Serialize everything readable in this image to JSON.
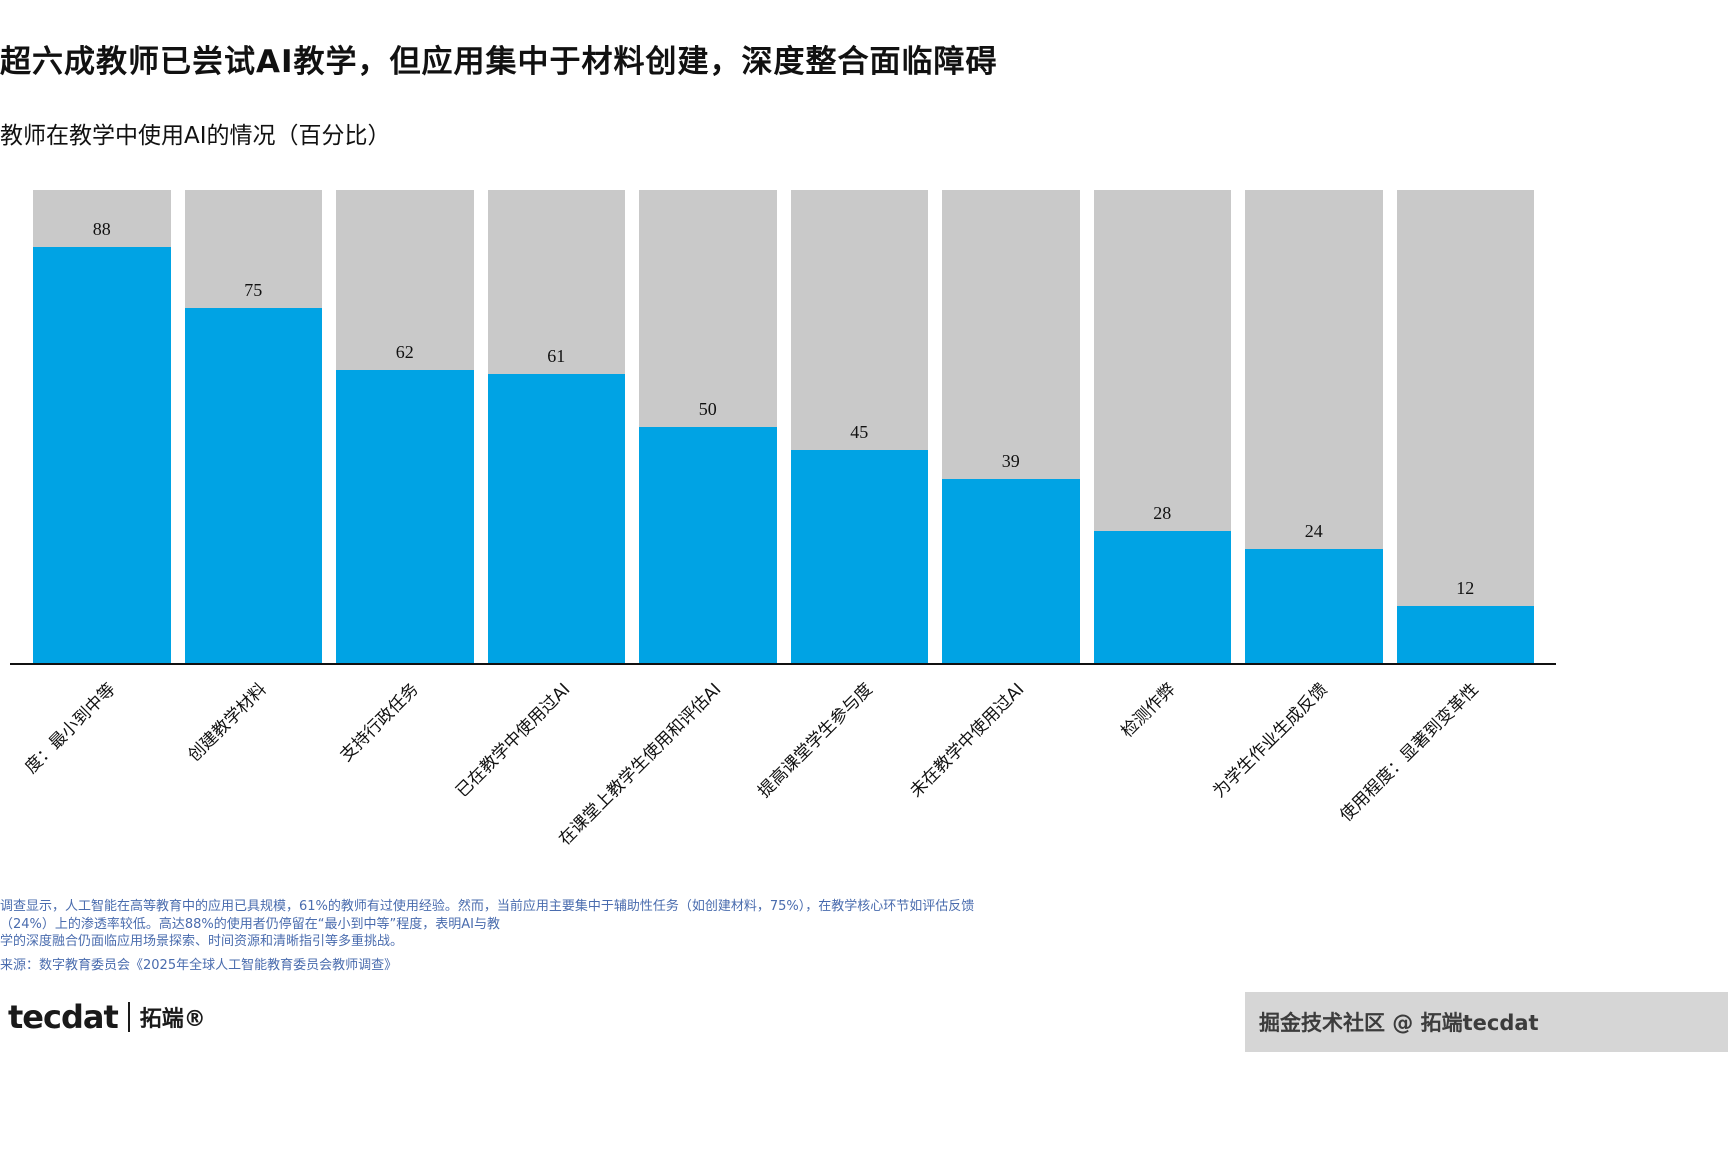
{
  "header": {
    "title": "超六成教师已尝试AI教学，但应用集中于材料创建，深度整合面临障碍",
    "subtitle": "教师在教学中使用AI的情况（百分比）"
  },
  "chart_data": {
    "type": "bar",
    "title": "教师在教学中使用AI的情况（百分比）",
    "categories": [
      "度：最小到中等",
      "创建教学材料",
      "支持行政任务",
      "已在教学中使用过AI",
      "在课堂上教学生使用和评估AI",
      "提高课堂学生参与度",
      "未在教学中使用过AI",
      "检测作弊",
      "为学生作业生成反馈",
      "使用程度：显著到变革性"
    ],
    "values": [
      88,
      75,
      62,
      61,
      50,
      45,
      39,
      28,
      24,
      12
    ],
    "ylim": [
      0,
      100
    ],
    "bar_color": "#00a3e4",
    "track_color": "#c9c9c9",
    "grid": "off",
    "legend": "none"
  },
  "footnote": {
    "lines": [
      "调查显示，人工智能在高等教育中的应用已具规模，61%的教师有过使用经验。然而，当前应用主要集中于辅助性任务（如创建材料，75%），在教学核心环节如评估反馈",
      "（24%）上的渗透率较低。高达88%的使用者仍停留在“最小到中等”程度，表明AI与教",
      "学的深度融合仍面临应用场景探索、时间资源和清晰指引等多重挑战。"
    ],
    "source": "来源：数字教育委员会《2025年全球人工智能教育委员会教师调查》"
  },
  "branding": {
    "logo_en": "tecdat",
    "logo_zh": "拓端®",
    "watermark": "掘金技术社区 @ 拓端tecdat"
  }
}
